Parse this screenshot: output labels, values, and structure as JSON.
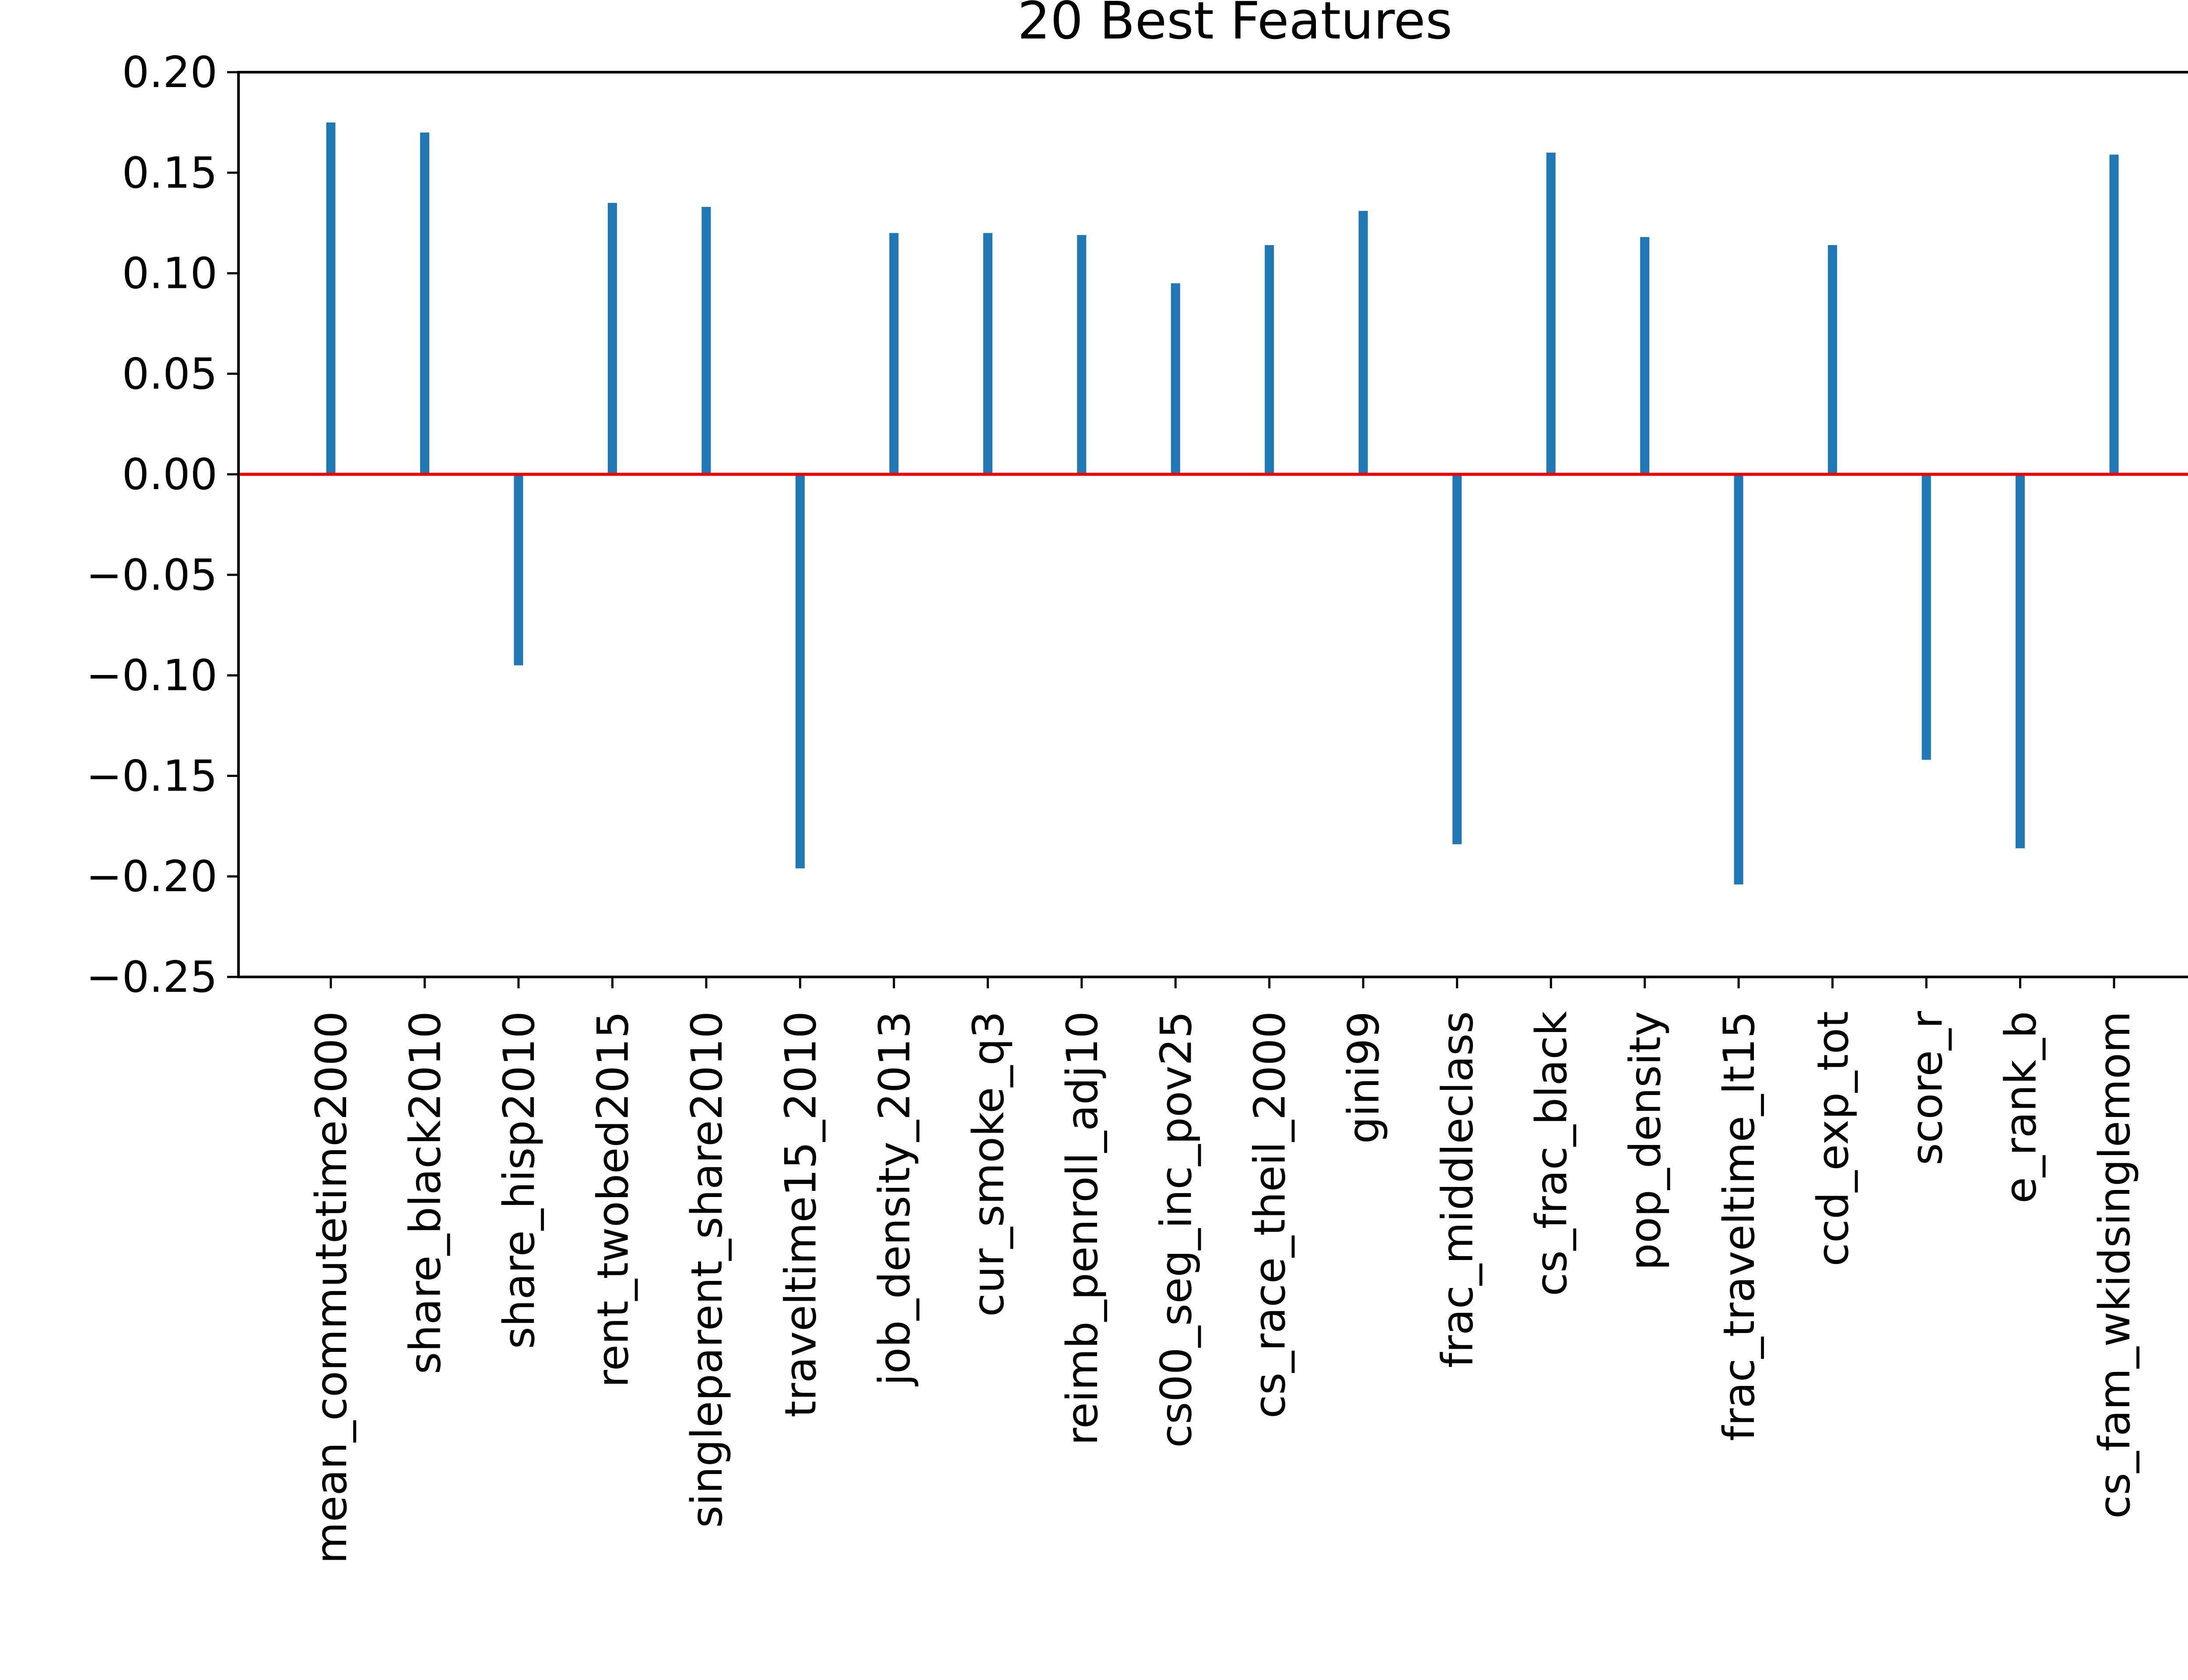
{
  "chart_data": {
    "type": "bar",
    "title": "20 Best Features",
    "xlabel": "",
    "ylabel": "",
    "ylim": [
      -0.25,
      0.2
    ],
    "yticks": [
      0.2,
      0.15,
      0.1,
      0.05,
      0.0,
      -0.05,
      -0.1,
      -0.15,
      -0.2,
      -0.25
    ],
    "ytick_labels": [
      "0.20",
      "0.15",
      "0.10",
      "0.05",
      "0.00",
      "−0.05",
      "−0.10",
      "−0.15",
      "−0.20",
      "−0.25"
    ],
    "categories": [
      "mean_commutetime2000",
      "share_black2010",
      "share_hisp2010",
      "rent_twobed2015",
      "singleparent_share2010",
      "traveltime15_2010",
      "job_density_2013",
      "cur_smoke_q3",
      "reimb_penroll_adj10",
      "cs00_seg_inc_pov25",
      "cs_race_theil_2000",
      "gini99",
      "frac_middleclass",
      "cs_frac_black",
      "pop_density",
      "frac_traveltime_lt15",
      "ccd_exp_tot",
      "score_r",
      "e_rank_b",
      "cs_fam_wkidsinglemom"
    ],
    "values": [
      0.175,
      0.17,
      -0.095,
      0.135,
      0.133,
      -0.196,
      0.12,
      0.12,
      0.119,
      0.095,
      0.114,
      0.131,
      -0.184,
      0.16,
      0.118,
      -0.204,
      0.114,
      -0.142,
      -0.186,
      0.159
    ],
    "bar_color": "#1f77b4",
    "zero_line_color": "#ee0000",
    "grid": false,
    "legend": "none"
  }
}
